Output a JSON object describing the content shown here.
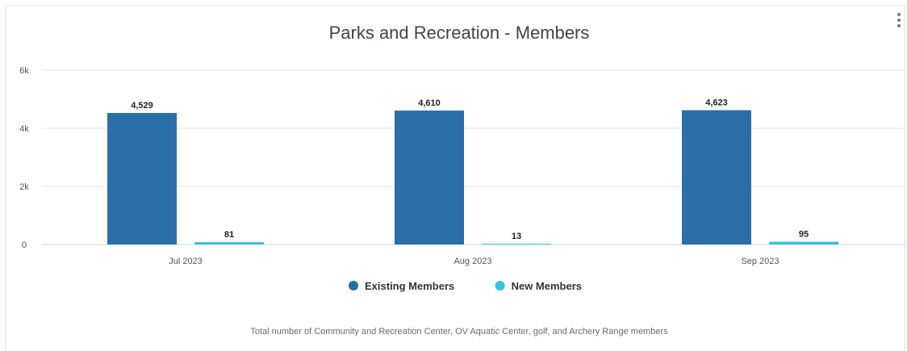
{
  "menu_icon": "vertical-ellipsis-icon",
  "caption": "Total number of Community and Recreation Center, OV Aquatic Center, golf, and Archery Range members",
  "chart_data": {
    "type": "bar",
    "title": "Parks and Recreation - Members",
    "xlabel": "",
    "ylabel": "",
    "categories": [
      "Jul 2023",
      "Aug 2023",
      "Sep 2023"
    ],
    "series": [
      {
        "name": "Existing Members",
        "color": "#2a6ea8",
        "values": [
          4529,
          4610,
          4623
        ],
        "labels": [
          "4,529",
          "4,610",
          "4,623"
        ]
      },
      {
        "name": "New Members",
        "color": "#35c3dd",
        "values": [
          81,
          13,
          95
        ],
        "labels": [
          "81",
          "13",
          "95"
        ]
      }
    ],
    "ylim": [
      0,
      6000
    ],
    "yticks": [
      0,
      2000,
      4000,
      6000
    ],
    "ytick_labels": [
      "0",
      "2k",
      "4k",
      "6k"
    ],
    "grid": true,
    "legend_position": "bottom"
  }
}
